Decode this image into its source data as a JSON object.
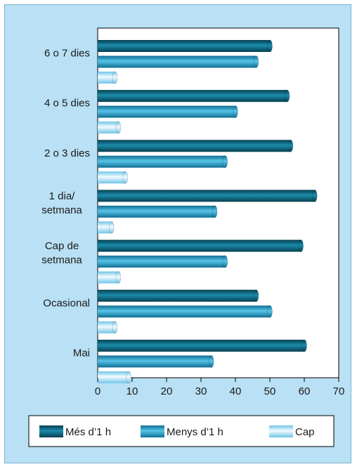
{
  "chart_data": {
    "type": "bar",
    "orientation": "horizontal",
    "categories": [
      [
        "6 o 7 dies"
      ],
      [
        "4 o 5 dies"
      ],
      [
        "2 o 3 dies"
      ],
      [
        "1 dia/",
        "setmana"
      ],
      [
        "Cap de",
        "setmana"
      ],
      [
        "Ocasional"
      ],
      [
        "Mai"
      ]
    ],
    "series": [
      {
        "name": "Més d’1 h",
        "values": [
          50,
          55,
          56,
          63,
          59,
          46,
          60
        ],
        "color": "#0d6479"
      },
      {
        "name": "Menys d’1 h",
        "values": [
          46,
          40,
          37,
          34,
          37,
          50,
          33
        ],
        "color": "#2b9fc6"
      },
      {
        "name": "Cap",
        "values": [
          5,
          6,
          8,
          4,
          6,
          5,
          9
        ],
        "color": "#a9def4"
      }
    ],
    "xlim": [
      0,
      70
    ],
    "xticks": [
      0,
      10,
      20,
      30,
      40,
      50,
      60,
      70
    ],
    "legend_position": "bottom",
    "grid": false
  },
  "colors": {
    "panel_background": "#b9e0f4",
    "plot_background": "#ffffff",
    "axis": "#000000"
  }
}
